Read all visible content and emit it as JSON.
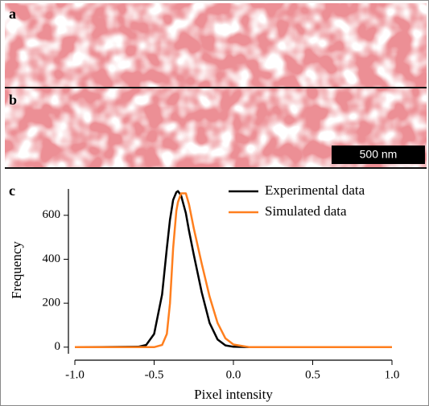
{
  "panels": [
    {
      "label": "a"
    },
    {
      "label": "b",
      "scale_bar": "500 nm"
    }
  ],
  "chart_data": {
    "type": "line",
    "panel_label": "c",
    "x_label": "Pixel intensity",
    "y_label": "Frequency",
    "x": [
      -1.0,
      -0.6,
      -0.55,
      -0.5,
      -0.45,
      -0.42,
      -0.4,
      -0.38,
      -0.36,
      -0.35,
      -0.33,
      -0.3,
      -0.28,
      -0.25,
      -0.2,
      -0.15,
      -0.1,
      -0.05,
      0,
      0.1,
      1.0
    ],
    "series": [
      {
        "name": "Experimental data",
        "color": "#000000",
        "values": [
          0,
          2,
          10,
          60,
          240,
          450,
          580,
          670,
          705,
          710,
          690,
          610,
          530,
          420,
          250,
          110,
          35,
          8,
          2,
          0,
          0
        ]
      },
      {
        "name": "Simulated data",
        "color": "#ff7f1e",
        "values": [
          0,
          0,
          0,
          0,
          10,
          60,
          200,
          450,
          620,
          660,
          700,
          700,
          650,
          540,
          380,
          230,
          110,
          40,
          12,
          0,
          0
        ]
      }
    ],
    "xlim": [
      -1.0,
      1.0
    ],
    "xticks": [
      {
        "value": -1.0,
        "label": "-1.0"
      },
      -0.5,
      {
        "value": 0,
        "label": "0.0"
      },
      0.5,
      {
        "value": 1.0,
        "label": "1.0"
      }
    ],
    "ylim": [
      -30,
      720
    ],
    "yticks": [
      0,
      200,
      400,
      600
    ],
    "legend": "upper right"
  }
}
